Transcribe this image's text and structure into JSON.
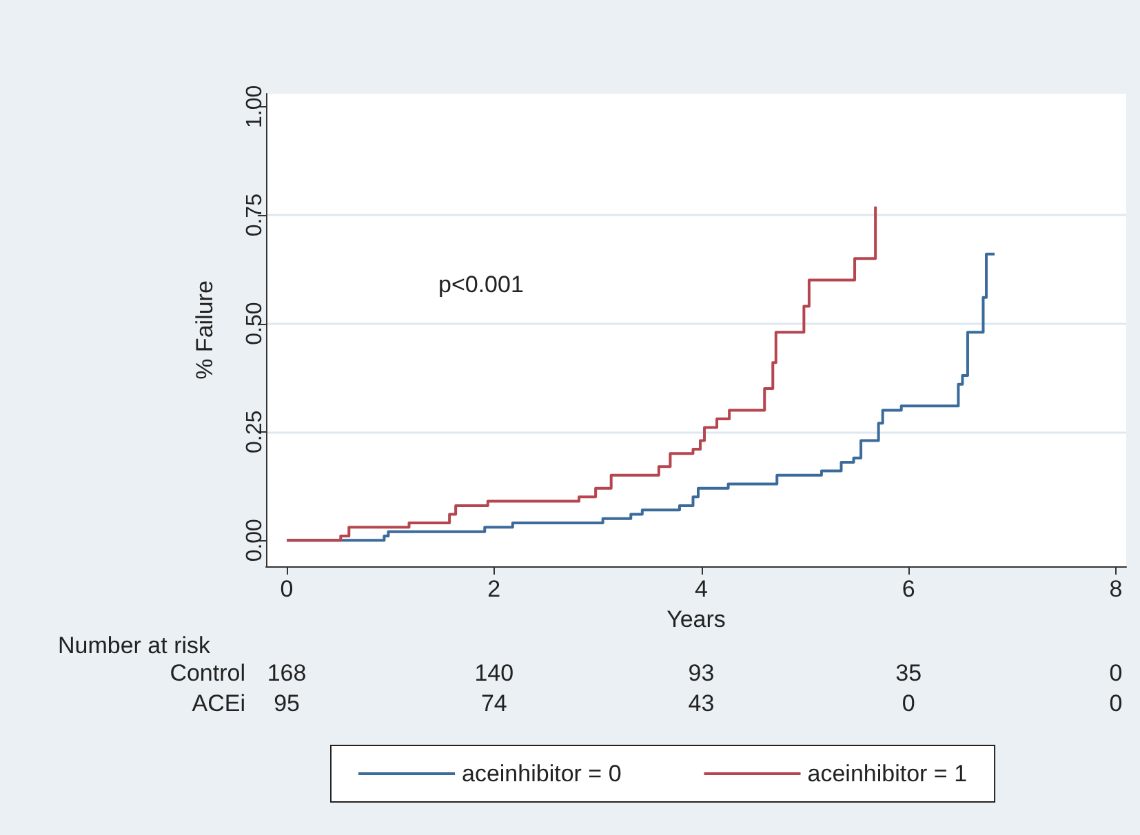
{
  "chart_data": {
    "type": "step",
    "xlabel": "Years",
    "ylabel": "% Failure",
    "xlim": [
      -0.2,
      8.1
    ],
    "xticks": [
      0,
      2,
      4,
      6,
      8
    ],
    "ylim": [
      -0.06,
      1.03
    ],
    "yticks": [
      {
        "value": 0,
        "label": "0.00"
      },
      {
        "value": 0.25,
        "label": "0.25"
      },
      {
        "value": 0.5,
        "label": "0.50"
      },
      {
        "value": 0.75,
        "label": "0.75"
      },
      {
        "value": 1,
        "label": "1.00"
      }
    ],
    "grid": "y",
    "legend": "bottom",
    "line_style": "solid",
    "marker": "none",
    "series": [
      {
        "name": "aceinhibitor = 0",
        "color": "#3b6b9b",
        "x": [
          0,
          0.94,
          0.98,
          1.91,
          2.18,
          3.05,
          3.32,
          3.43,
          3.79,
          3.92,
          3.97,
          4.26,
          4.73,
          5.16,
          5.35,
          5.47,
          5.54,
          5.71,
          5.75,
          5.93,
          6.48,
          6.52,
          6.57,
          6.72,
          6.75,
          6.83
        ],
        "values": [
          0,
          0.01,
          0.02,
          0.03,
          0.04,
          0.05,
          0.06,
          0.07,
          0.08,
          0.1,
          0.12,
          0.13,
          0.15,
          0.16,
          0.18,
          0.19,
          0.23,
          0.27,
          0.3,
          0.31,
          0.36,
          0.38,
          0.48,
          0.56,
          0.66,
          0.66
        ]
      },
      {
        "name": "aceinhibitor = 1",
        "color": "#b5464f",
        "x": [
          0,
          0.52,
          0.6,
          1.18,
          1.57,
          1.63,
          1.94,
          2.82,
          2.98,
          3.13,
          3.59,
          3.7,
          3.92,
          3.99,
          4.03,
          4.15,
          4.27,
          4.61,
          4.69,
          4.72,
          4.99,
          5.04,
          5.48,
          5.68
        ],
        "values": [
          0,
          0.01,
          0.03,
          0.04,
          0.06,
          0.08,
          0.09,
          0.1,
          0.12,
          0.15,
          0.17,
          0.2,
          0.21,
          0.23,
          0.26,
          0.28,
          0.3,
          0.35,
          0.41,
          0.48,
          0.54,
          0.6,
          0.65,
          0.77
        ]
      }
    ],
    "annotations": [
      "p<0.001",
      "Number at risk",
      "Control",
      "168",
      "140",
      "93",
      "35",
      "0",
      "ACEi",
      "95",
      "74",
      "43",
      "0",
      "0"
    ]
  }
}
